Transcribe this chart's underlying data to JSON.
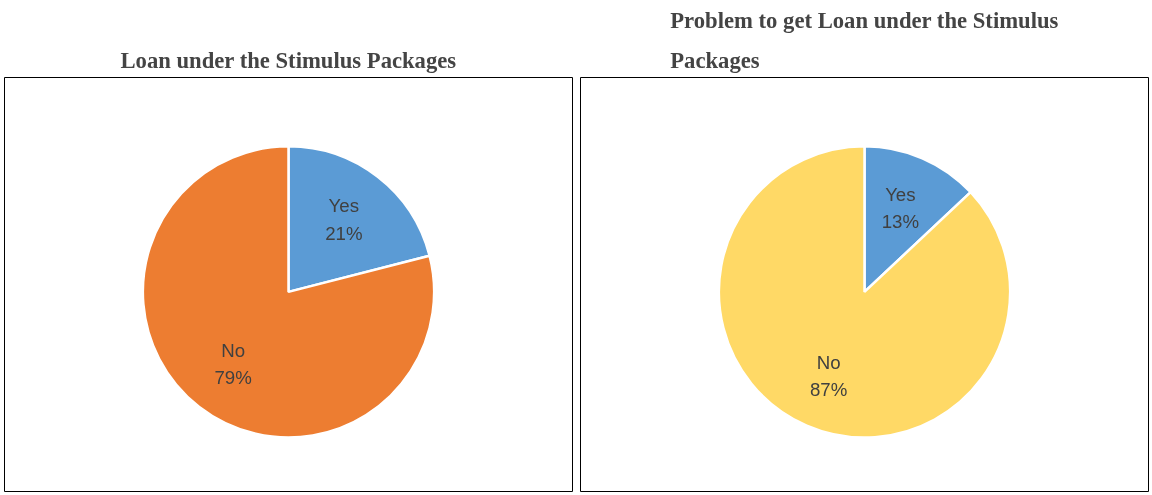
{
  "chart_data": [
    {
      "type": "pie",
      "title": "Loan under the Stimulus Packages",
      "categories": [
        "Yes",
        "No"
      ],
      "values": [
        21,
        79
      ],
      "colors": [
        "#5b9bd5",
        "#ed7d31"
      ],
      "value_labels": [
        "21%",
        "79%"
      ]
    },
    {
      "type": "pie",
      "title": "Problem to get Loan under the Stimulus Packages",
      "categories": [
        "Yes",
        "No"
      ],
      "values": [
        13,
        87
      ],
      "colors": [
        "#5b9bd5",
        "#ffd966"
      ],
      "value_labels": [
        "13%",
        "87%"
      ]
    }
  ]
}
